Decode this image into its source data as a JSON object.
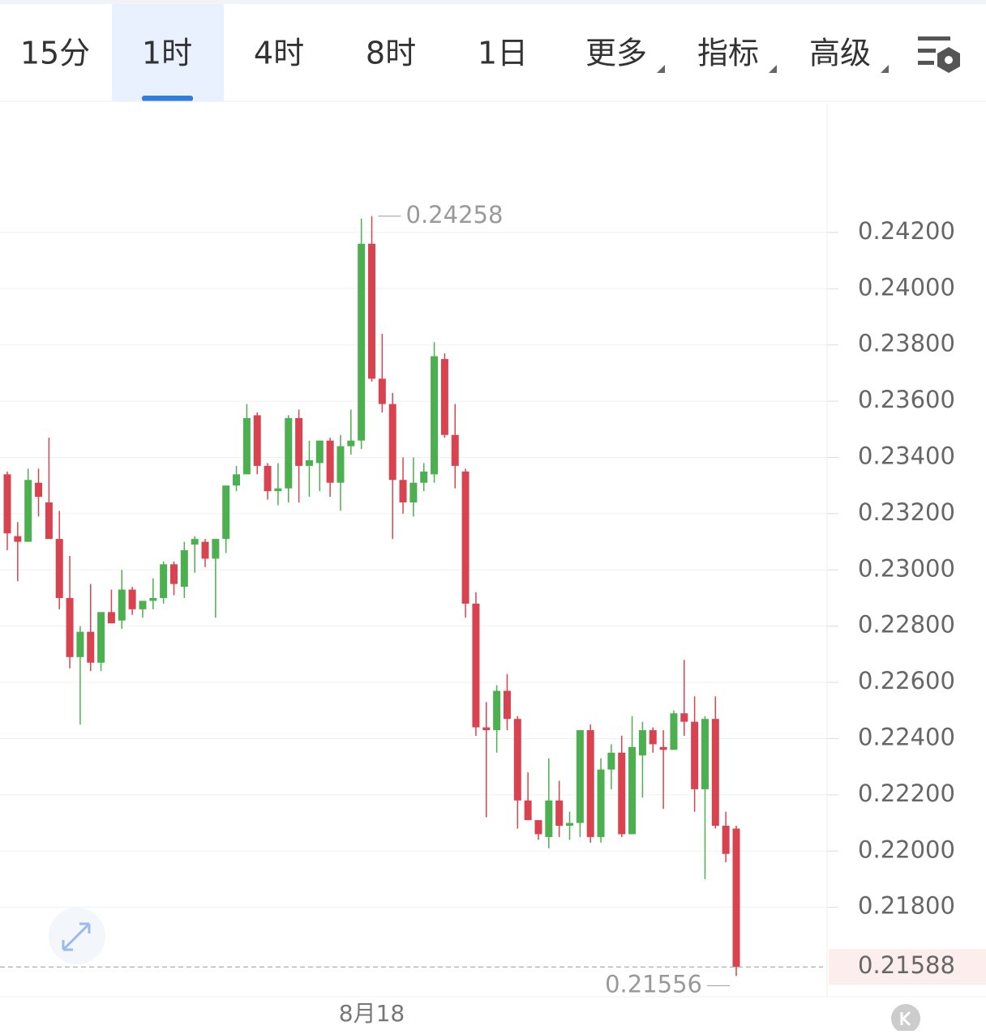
{
  "toolbar": {
    "tabs": [
      "15分",
      "1时",
      "4时",
      "8时",
      "1日"
    ],
    "menus": [
      "更多",
      "指标",
      "高级"
    ],
    "active": 1
  },
  "chart_data": {
    "type": "candlestick",
    "categories": [
      null,
      null,
      null,
      null,
      null,
      null,
      null,
      null,
      null,
      null,
      null,
      null,
      null,
      null,
      null,
      null,
      null,
      null,
      null,
      null,
      null,
      null,
      null,
      null,
      null,
      null,
      null,
      null,
      null,
      null,
      null,
      null,
      null,
      null,
      null,
      "8月18",
      null,
      null,
      null,
      null,
      null,
      null,
      null,
      null,
      null,
      null,
      null,
      null,
      null,
      null,
      null,
      null,
      null,
      null,
      null,
      null,
      null,
      null,
      null,
      null,
      null,
      null,
      null,
      null,
      null,
      null,
      null,
      null,
      null,
      null,
      null
    ],
    "open": [
      0.2334,
      0.2312,
      0.231,
      0.2331,
      0.2324,
      0.2311,
      0.229,
      0.2269,
      0.2278,
      0.2267,
      0.2285,
      0.2282,
      0.2293,
      0.2286,
      0.2289,
      0.229,
      0.2302,
      0.2294,
      0.2309,
      0.231,
      0.2304,
      0.2311,
      0.233,
      0.2334,
      0.2355,
      0.2337,
      0.2328,
      0.2329,
      0.2354,
      0.2337,
      0.2338,
      0.2346,
      0.2331,
      0.2344,
      0.2346,
      0.2416,
      0.2368,
      0.2359,
      0.2332,
      0.2324,
      0.2331,
      0.2334,
      0.2375,
      0.2348,
      0.2335,
      0.2288,
      0.2244,
      0.2243,
      0.2257,
      0.2247,
      0.2218,
      0.2211,
      0.2205,
      0.2218,
      0.2209,
      0.221,
      0.2243,
      0.2205,
      0.2229,
      0.2235,
      0.2206,
      0.2234,
      0.2243,
      0.2237,
      0.2236,
      0.2249,
      0.2246,
      0.2222,
      0.2247,
      0.2209,
      0.2208
    ],
    "high": [
      0.2335,
      0.2317,
      0.2336,
      0.2336,
      0.2347,
      0.2321,
      0.2305,
      0.228,
      0.2295,
      0.2285,
      0.2293,
      0.23,
      0.2294,
      0.2289,
      0.2297,
      0.2303,
      0.2303,
      0.231,
      0.2312,
      0.2311,
      0.2311,
      0.233,
      0.2337,
      0.2359,
      0.2356,
      0.2338,
      0.2338,
      0.2355,
      0.2357,
      0.2346,
      0.2346,
      0.2347,
      0.2348,
      0.2357,
      0.2425,
      0.24258,
      0.2384,
      0.2363,
      0.234,
      0.234,
      0.2338,
      0.2381,
      0.2377,
      0.2359,
      0.2336,
      0.2292,
      0.2253,
      0.2259,
      0.2263,
      0.2248,
      0.2228,
      0.2211,
      0.2233,
      0.2225,
      0.2214,
      0.2243,
      0.2245,
      0.2233,
      0.2238,
      0.2241,
      0.2248,
      0.2246,
      0.2244,
      0.2243,
      0.225,
      0.2268,
      0.2255,
      0.2248,
      0.2255,
      0.2214,
      0.2209
    ],
    "low": [
      0.2307,
      0.2296,
      0.231,
      0.2319,
      0.2311,
      0.2286,
      0.2265,
      0.2245,
      0.2264,
      0.2264,
      0.2281,
      0.2279,
      0.2284,
      0.2283,
      0.2286,
      0.2288,
      0.2291,
      0.229,
      0.2299,
      0.2301,
      0.2283,
      0.2306,
      0.2328,
      0.2334,
      0.2334,
      0.2325,
      0.2323,
      0.2324,
      0.2324,
      0.2326,
      0.2328,
      0.2326,
      0.2321,
      0.2341,
      0.2343,
      0.2367,
      0.2356,
      0.2311,
      0.232,
      0.2319,
      0.2328,
      0.2331,
      0.2347,
      0.2329,
      0.2283,
      0.2241,
      0.2212,
      0.2235,
      0.2243,
      0.2208,
      0.2211,
      0.2204,
      0.2201,
      0.2205,
      0.2204,
      0.2205,
      0.2203,
      0.2203,
      0.2222,
      0.2205,
      0.2206,
      0.2219,
      0.2235,
      0.2215,
      0.2236,
      0.2241,
      0.2214,
      0.219,
      0.2208,
      0.2196,
      0.21556
    ],
    "close": [
      0.2313,
      0.231,
      0.2332,
      0.2326,
      0.2311,
      0.229,
      0.2269,
      0.2278,
      0.2267,
      0.2285,
      0.2281,
      0.2293,
      0.2286,
      0.2289,
      0.229,
      0.2302,
      0.2295,
      0.2307,
      0.2311,
      0.2304,
      0.2311,
      0.233,
      0.2334,
      0.2354,
      0.2337,
      0.2328,
      0.2329,
      0.2354,
      0.2337,
      0.2339,
      0.2346,
      0.2331,
      0.2344,
      0.2346,
      0.2416,
      0.2368,
      0.2359,
      0.2332,
      0.2324,
      0.2331,
      0.2335,
      0.2376,
      0.2348,
      0.2337,
      0.2288,
      0.2244,
      0.2243,
      0.2257,
      0.2247,
      0.2218,
      0.2211,
      0.2206,
      0.2218,
      0.2209,
      0.221,
      0.2243,
      0.2205,
      0.2229,
      0.2235,
      0.2206,
      0.2237,
      0.2243,
      0.2238,
      0.2236,
      0.2249,
      0.2246,
      0.2222,
      0.2247,
      0.2209,
      0.2199,
      0.21588
    ],
    "up_color": "#4caf50",
    "down_color": "#d9434f",
    "ylim": [
      0.21482,
      0.24658
    ],
    "yticks": [
      {
        "value": 0.218,
        "label": "0.21800"
      },
      {
        "value": 0.22,
        "label": "0.22000"
      },
      {
        "value": 0.222,
        "label": "0.22200"
      },
      {
        "value": 0.224,
        "label": "0.22400"
      },
      {
        "value": 0.226,
        "label": "0.22600"
      },
      {
        "value": 0.228,
        "label": "0.22800"
      },
      {
        "value": 0.23,
        "label": "0.23000"
      },
      {
        "value": 0.232,
        "label": "0.23200"
      },
      {
        "value": 0.234,
        "label": "0.23400"
      },
      {
        "value": 0.236,
        "label": "0.23600"
      },
      {
        "value": 0.238,
        "label": "0.23800"
      },
      {
        "value": 0.24,
        "label": "0.24000"
      },
      {
        "value": 0.242,
        "label": "0.24200"
      }
    ],
    "grid": true,
    "max_label": 0.24258,
    "min_label": 0.21556,
    "last_price": 0.21588
  }
}
